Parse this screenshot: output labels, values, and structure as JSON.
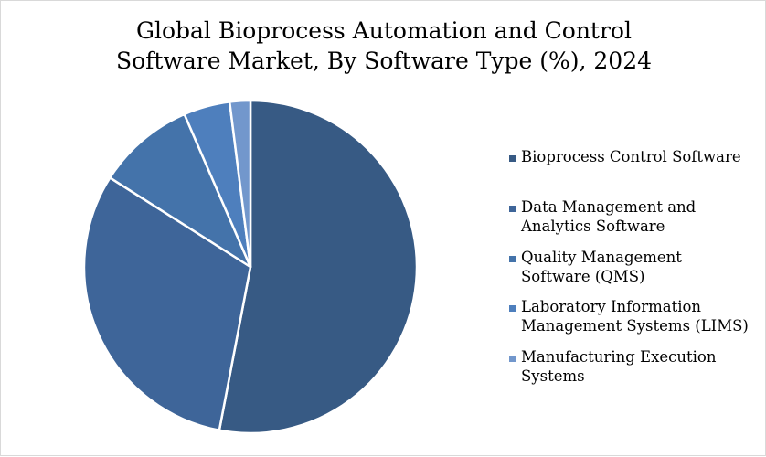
{
  "chart_data": {
    "type": "pie",
    "title_lines": [
      "Global Bioprocess Automation and Control",
      "Software Market, By Software Type (%), 2024"
    ],
    "legend_position": "right",
    "slices": [
      {
        "label": "Bioprocess Control Software",
        "value": 53,
        "color": "#375a84"
      },
      {
        "label": "Data Management and\nAnalytics Software",
        "value": 31,
        "color": "#3e6599"
      },
      {
        "label": " Quality Management\nSoftware (QMS)",
        "value": 9.5,
        "color": "#4473aa"
      },
      {
        "label": "Laboratory Information\nManagement Systems (LIMS)",
        "value": 4.5,
        "color": "#4e7fbd"
      },
      {
        "label": "Manufacturing Execution\nSystems",
        "value": 2,
        "color": "#7297cc"
      }
    ]
  }
}
